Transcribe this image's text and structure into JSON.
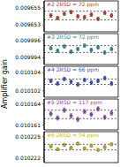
{
  "ylabel": "Amplifier gain",
  "chart_data": [
    {
      "type": "scatter",
      "label": "#2 2RSD = 72 ppm",
      "color": "#c0392b",
      "marker": "circle",
      "tick_labels": "y",
      "x": [
        1,
        2,
        3,
        4,
        5,
        6,
        7,
        8,
        9,
        10
      ],
      "xlim": [
        0,
        11
      ],
      "values": [
        0.0096541,
        0.0096538,
        0.0096543,
        0.0096545,
        0.009654,
        0.0096539,
        0.0096542,
        0.0096537,
        0.0096544,
        0.0096541
      ],
      "errors": [
        2e-07,
        2e-07,
        2e-07,
        2e-07,
        2e-07,
        2e-07,
        2e-07,
        2e-07,
        2e-07,
        2e-07
      ],
      "ylim": [
        0.0096522,
        0.0096558
      ],
      "yticks": [
        0.009653,
        0.009655
      ],
      "reference_lines": [
        0.0096536,
        0.0096546
      ]
    },
    {
      "type": "scatter",
      "label": "#3 2RSD = 72 ppm",
      "color": "#2a8c9a",
      "marker": "circle",
      "tick_labels": "y",
      "x": [
        1,
        2,
        3,
        4,
        5,
        6,
        7,
        8,
        9,
        10
      ],
      "xlim": [
        0,
        11
      ],
      "values": [
        0.0099951,
        0.0099948,
        0.0099953,
        0.0099947,
        0.009995,
        0.0099954,
        0.0099949,
        0.0099952,
        0.0099946,
        0.009995
      ],
      "errors": [
        2e-07,
        2e-07,
        2e-07,
        2e-07,
        2e-07,
        2e-07,
        2e-07,
        2e-07,
        2e-07,
        2e-07
      ],
      "ylim": [
        0.0099932,
        0.0099968
      ],
      "yticks": [
        0.009994,
        0.009996
      ],
      "reference_lines": [
        0.0099946,
        0.0099954
      ]
    },
    {
      "type": "scatter",
      "label": "#4 2RSD = 66 ppm",
      "color": "#3b4cc0",
      "marker": "circle",
      "tick_labels": "y",
      "x": [
        1,
        2,
        3,
        4,
        5,
        6,
        7,
        8,
        9,
        10
      ],
      "xlim": [
        0,
        11
      ],
      "values": [
        0.0101031,
        0.0101028,
        0.0101033,
        0.010103,
        0.0101027,
        0.0101032,
        0.0101029,
        0.0101031,
        0.0101034,
        0.0101028
      ],
      "errors": [
        2e-07,
        2e-07,
        2e-07,
        2e-07,
        2e-07,
        2e-07,
        2e-07,
        2e-07,
        2e-07,
        2e-07
      ],
      "ylim": [
        0.0101013,
        0.0101047
      ],
      "yticks": [
        0.010102,
        0.010104
      ],
      "reference_lines": [
        0.0101027,
        0.0101033
      ]
    },
    {
      "type": "scatter",
      "label": "#5 2RSD = 117 ppm",
      "color": "#8e44ad",
      "marker": "circle",
      "tick_labels": "y",
      "x": [
        1,
        2,
        3,
        4,
        5,
        6,
        7,
        8,
        9,
        10
      ],
      "xlim": [
        0,
        11
      ],
      "values": [
        0.0101626,
        0.010162,
        0.0101631,
        0.0101623,
        0.0101618,
        0.0101629,
        0.0101625,
        0.0101633,
        0.0101621,
        0.0101627
      ],
      "errors": [
        3e-07,
        3e-07,
        3e-07,
        3e-07,
        3e-07,
        3e-07,
        3e-07,
        3e-07,
        3e-07,
        3e-07
      ],
      "ylim": [
        0.0101603,
        0.0101647
      ],
      "yticks": [
        0.010161,
        0.010164
      ],
      "reference_lines": [
        0.0101619,
        0.0101631
      ]
    },
    {
      "type": "scatter",
      "label": "#6 2RSD = 74 ppm",
      "color": "#c9b300",
      "marker": "circle",
      "tick_labels": "y",
      "x": [
        1,
        2,
        3,
        4,
        5,
        6,
        7,
        8,
        9,
        10
      ],
      "xlim": [
        0,
        11
      ],
      "values": [
        0.0102236,
        0.0102232,
        0.0102238,
        0.0102234,
        0.010224,
        0.0102233,
        0.0102237,
        0.0102231,
        0.0102235,
        0.0102239
      ],
      "errors": [
        2e-07,
        2e-07,
        2e-07,
        2e-07,
        2e-07,
        2e-07,
        2e-07,
        2e-07,
        2e-07,
        2e-07
      ],
      "ylim": [
        0.0102213,
        0.0102257
      ],
      "yticks": [
        0.010222,
        0.010225
      ],
      "reference_lines": [
        0.0102231,
        0.0102239
      ]
    }
  ]
}
